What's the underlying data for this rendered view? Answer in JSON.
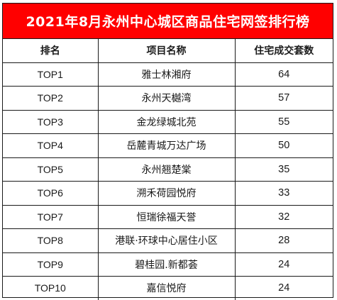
{
  "title": "2021年8月永州中心城区商品住宅网签排行榜",
  "header": {
    "rank": "排名",
    "project": "项目名称",
    "units": "住宅成交套数"
  },
  "rows": [
    {
      "rank": "TOP1",
      "project": "雅士林湘府",
      "units": "64"
    },
    {
      "rank": "TOP2",
      "project": "永州天樾湾",
      "units": "57"
    },
    {
      "rank": "TOP3",
      "project": "金龙绿城北苑",
      "units": "55"
    },
    {
      "rank": "TOP4",
      "project": "岳麓青城万达广场",
      "units": "50"
    },
    {
      "rank": "TOP5",
      "project": "永州翘楚棠",
      "units": "35"
    },
    {
      "rank": "TOP6",
      "project": "溯禾荷园悦府",
      "units": "33"
    },
    {
      "rank": "TOP7",
      "project": "恒瑞徐福天誉",
      "units": "32"
    },
    {
      "rank": "TOP8",
      "project": "港联·环球中心居住小区",
      "units": "28"
    },
    {
      "rank": "TOP9",
      "project": "碧桂园.新都荟",
      "units": "24"
    },
    {
      "rank": "TOP10",
      "project": "嘉信悦府",
      "units": "24"
    }
  ],
  "colors": {
    "title_background": "#ff0000",
    "title_text": "#ffffff",
    "grid_line": "#1a1a1a"
  }
}
